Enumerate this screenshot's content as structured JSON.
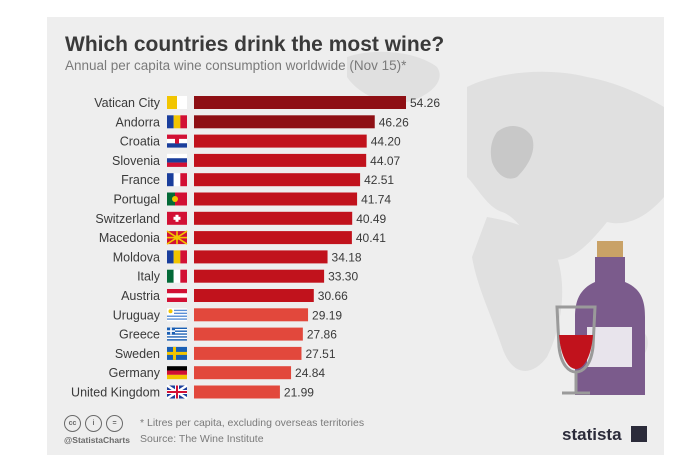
{
  "title": "Which countries drink the most wine?",
  "subtitle": "Annual per capita wine consumption worldwide (Nov 15)*",
  "footnote": "* Litres per capita, excluding overseas territories",
  "source": "Source: The Wine Institute",
  "handle": "@StatistaCharts",
  "license_icons": [
    "cc",
    "i",
    "="
  ],
  "brand": "statista",
  "colors": {
    "background": "#eeeeee",
    "dark_bar": "#8e0f14",
    "mid_bar": "#c1121c",
    "light_bar": "#e2483c",
    "text": "#3a3a3a"
  },
  "chart_data": {
    "type": "bar",
    "orientation": "horizontal",
    "categories": [
      "Vatican City",
      "Andorra",
      "Croatia",
      "Slovenia",
      "France",
      "Portugal",
      "Switzerland",
      "Macedonia",
      "Moldova",
      "Italy",
      "Austria",
      "Uruguay",
      "Greece",
      "Sweden",
      "Germany",
      "United Kingdom"
    ],
    "values": [
      54.26,
      46.26,
      44.2,
      44.07,
      42.51,
      41.74,
      40.49,
      40.41,
      34.18,
      33.3,
      30.66,
      29.19,
      27.86,
      27.51,
      24.84,
      21.99
    ],
    "value_labels": [
      "54.26",
      "46.26",
      "44.20",
      "44.07",
      "42.51",
      "41.74",
      "40.49",
      "40.41",
      "34.18",
      "33.30",
      "30.66",
      "29.19",
      "27.86",
      "27.51",
      "24.84",
      "21.99"
    ],
    "bar_colors": [
      "#8e0f14",
      "#8e0f14",
      "#c1121c",
      "#c1121c",
      "#c1121c",
      "#c1121c",
      "#c1121c",
      "#c1121c",
      "#c1121c",
      "#c1121c",
      "#c1121c",
      "#e2483c",
      "#e2483c",
      "#e2483c",
      "#e2483c",
      "#e2483c"
    ],
    "flags": [
      "vatican-flag-icon",
      "andorra-flag-icon",
      "croatia-flag-icon",
      "slovenia-flag-icon",
      "france-flag-icon",
      "portugal-flag-icon",
      "switzerland-flag-icon",
      "macedonia-flag-icon",
      "moldova-flag-icon",
      "italy-flag-icon",
      "austria-flag-icon",
      "uruguay-flag-icon",
      "greece-flag-icon",
      "sweden-flag-icon",
      "germany-flag-icon",
      "uk-flag-icon"
    ],
    "xlim": [
      0,
      54.26
    ],
    "xlabel": "",
    "ylabel": "",
    "grid": false
  }
}
